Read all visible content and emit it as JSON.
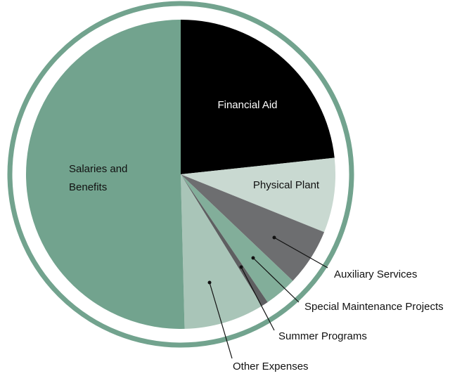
{
  "chart_data": {
    "type": "pie",
    "categories": [
      "Financial Aid",
      "Physical Plant",
      "Auxiliary Services",
      "Special Maintenance Projects",
      "Summer Programs",
      "Other Expenses",
      "Salaries and Benefits"
    ],
    "values": [
      23.3,
      7.8,
      6,
      3.4,
      0.7,
      8.4,
      50.4
    ],
    "colors": [
      "#000000",
      "#c9d9d1",
      "#6d6e70",
      "#82ae9a",
      "#5e5f61",
      "#a9c5b8",
      "#72a38e"
    ],
    "ring_color": "#72a38e"
  }
}
